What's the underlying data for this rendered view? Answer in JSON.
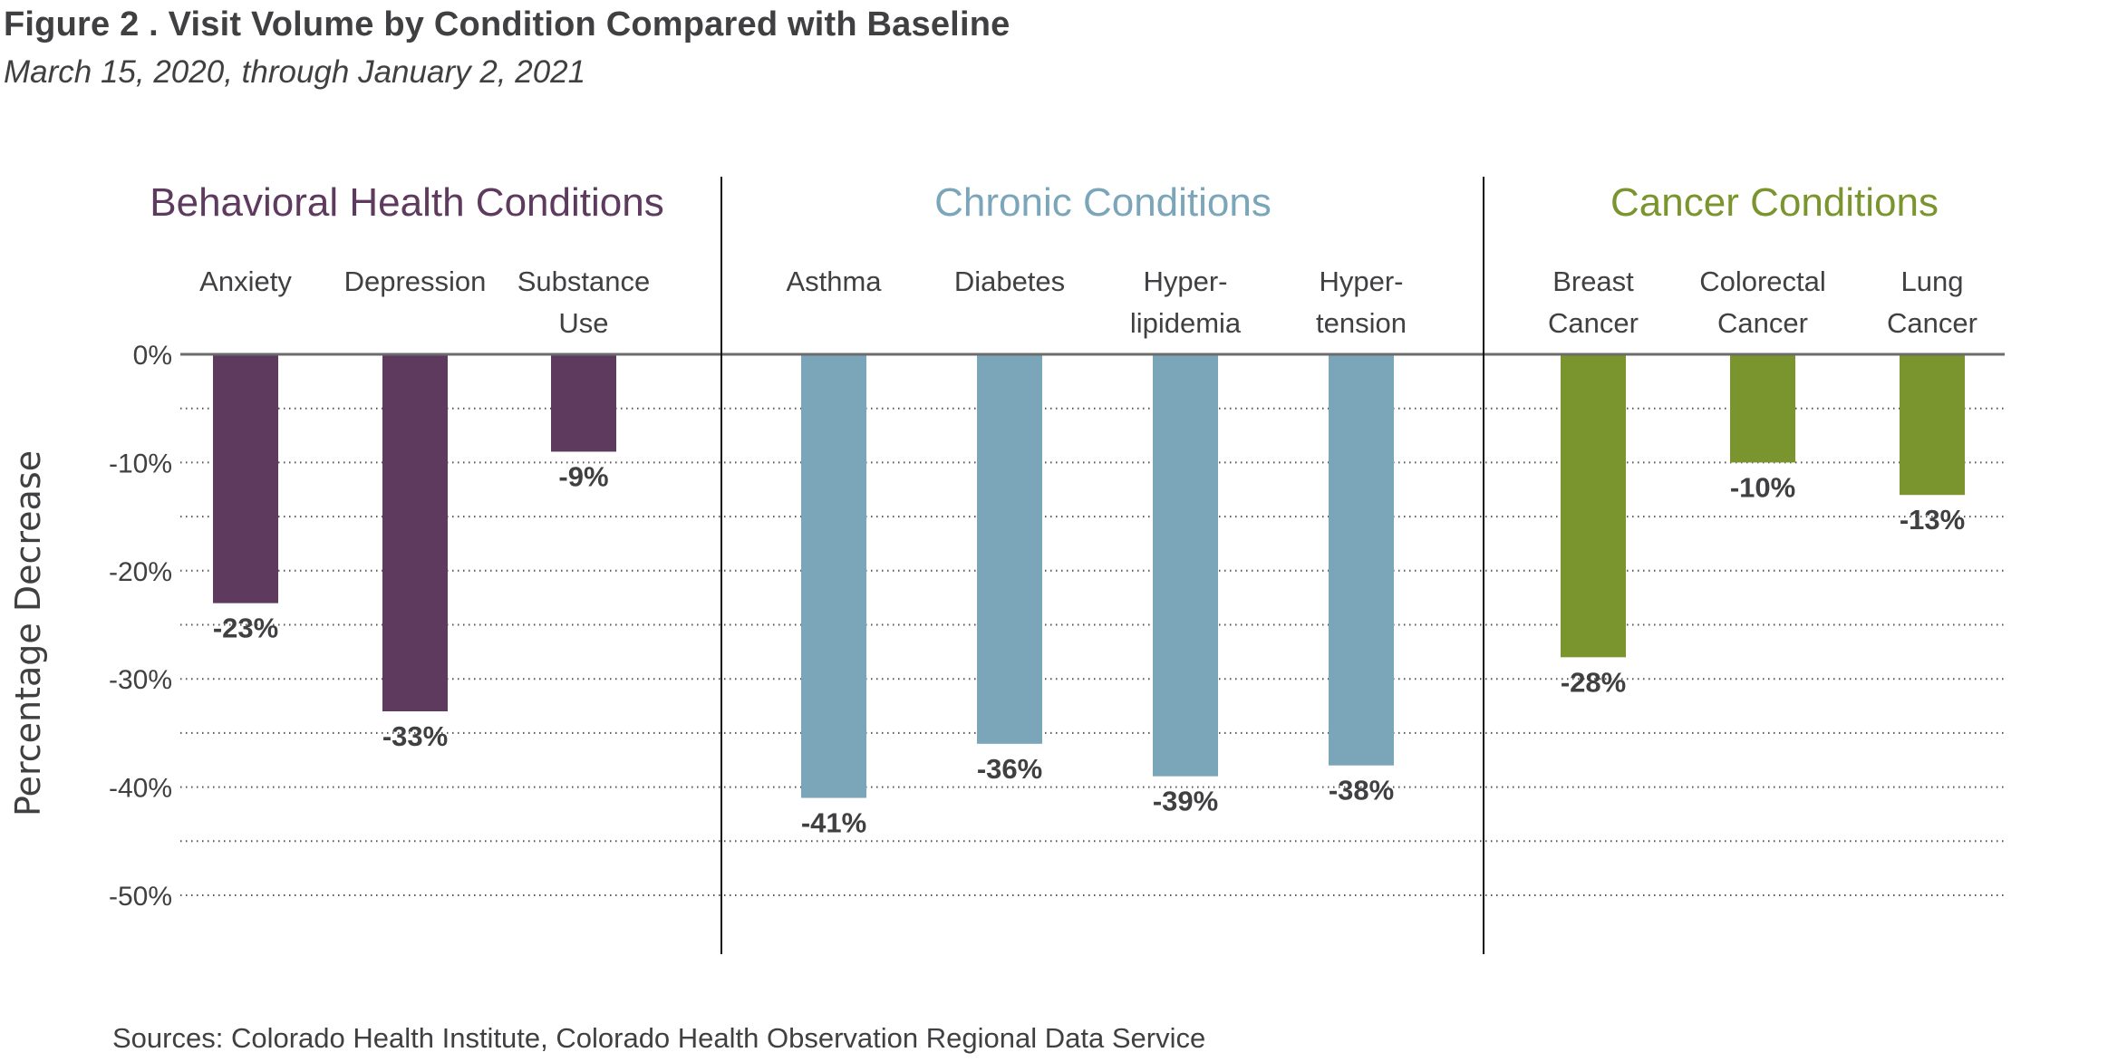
{
  "header": {
    "title": "Figure 2 . Visit Volume by Condition Compared with Baseline",
    "subtitle": "March 15, 2020, through January 2, 2021"
  },
  "footer": {
    "sources": "Sources: Colorado Health Institute, Colorado Health Observation Regional Data Service"
  },
  "chart_data": {
    "type": "bar",
    "title": "Visit Volume by Condition Compared with Baseline",
    "subtitle": "March 15, 2020, through January 2, 2021",
    "xlabel": "",
    "ylabel": "Percentage Decrease",
    "ylim": [
      -50,
      0
    ],
    "yticks": [
      0,
      -10,
      -20,
      -30,
      -40,
      -50
    ],
    "ytick_labels": [
      "0%",
      "-10%",
      "-20%",
      "-30%",
      "-40%",
      "-50%"
    ],
    "minor_gridlines_every": 5,
    "grid": true,
    "grid_style": "dotted",
    "value_suffix": "%",
    "groups": [
      {
        "name": "Behavioral Health Conditions",
        "color": "#5D3A5E",
        "categories": [
          {
            "label_lines": [
              "Anxiety"
            ],
            "value": -23,
            "label": "-23%"
          },
          {
            "label_lines": [
              "Depression"
            ],
            "value": -33,
            "label": "-33%"
          },
          {
            "label_lines": [
              "Substance",
              "Use"
            ],
            "value": -9,
            "label": "-9%"
          }
        ]
      },
      {
        "name": "Chronic Conditions",
        "color": "#7BA6BA",
        "categories": [
          {
            "label_lines": [
              "Asthma"
            ],
            "value": -41,
            "label": "-41%"
          },
          {
            "label_lines": [
              "Diabetes"
            ],
            "value": -36,
            "label": "-36%"
          },
          {
            "label_lines": [
              "Hyper-",
              "lipidemia"
            ],
            "value": -39,
            "label": "-39%"
          },
          {
            "label_lines": [
              "Hyper-",
              "tension"
            ],
            "value": -38,
            "label": "-38%"
          }
        ]
      },
      {
        "name": "Cancer Conditions",
        "color": "#7B952E",
        "categories": [
          {
            "label_lines": [
              "Breast",
              "Cancer"
            ],
            "value": -28,
            "label": "-28%"
          },
          {
            "label_lines": [
              "Colorectal",
              "Cancer"
            ],
            "value": -10,
            "label": "-10%"
          },
          {
            "label_lines": [
              "Lung",
              "Cancer"
            ],
            "value": -13,
            "label": "-13%"
          }
        ]
      }
    ]
  }
}
